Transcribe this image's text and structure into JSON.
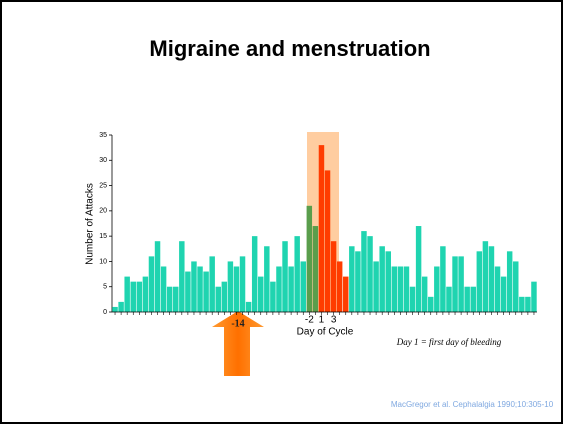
{
  "chart_data": {
    "type": "bar",
    "title": "Migraine and menstruation",
    "ylabel": "Number of Attacks",
    "xlabel": "Day of Cycle",
    "note": "Day 1 = first day of bleeding",
    "source": "MacGregor et al. Cephalalgia 1990;10:305-10",
    "arrow_label": "-14",
    "categories": [
      null,
      null,
      null,
      null,
      null,
      null,
      null,
      null,
      null,
      null,
      null,
      null,
      null,
      null,
      null,
      null,
      null,
      null,
      null,
      null,
      null,
      null,
      null,
      null,
      null,
      null,
      null,
      null,
      null,
      null,
      null,
      null,
      "-2",
      null,
      "1",
      null,
      "3",
      null,
      null,
      null,
      null,
      null,
      null,
      null,
      null,
      null,
      null,
      null,
      null,
      null,
      null,
      null,
      null,
      null,
      null,
      null,
      null,
      null,
      null,
      null,
      null,
      null,
      null,
      null,
      null,
      null,
      null,
      null,
      null,
      null
    ],
    "values": [
      1,
      2,
      7,
      6,
      6,
      7,
      11,
      14,
      9,
      5,
      5,
      14,
      8,
      10,
      9,
      8,
      11,
      5,
      6,
      10,
      9,
      11,
      2,
      15,
      7,
      13,
      6,
      9,
      14,
      9,
      15,
      10,
      21,
      17,
      33,
      28,
      14,
      10,
      7,
      13,
      12,
      16,
      15,
      10,
      13,
      12,
      9,
      9,
      9,
      5,
      17,
      7,
      3,
      9,
      13,
      5,
      11,
      11,
      5,
      5,
      12,
      14,
      13,
      9,
      7,
      12,
      10,
      3,
      3,
      6
    ],
    "colors": [
      "#1fd4b0",
      "#1fd4b0",
      "#1fd4b0",
      "#1fd4b0",
      "#1fd4b0",
      "#1fd4b0",
      "#1fd4b0",
      "#1fd4b0",
      "#1fd4b0",
      "#1fd4b0",
      "#1fd4b0",
      "#1fd4b0",
      "#1fd4b0",
      "#1fd4b0",
      "#1fd4b0",
      "#1fd4b0",
      "#1fd4b0",
      "#1fd4b0",
      "#1fd4b0",
      "#1fd4b0",
      "#1fd4b0",
      "#1fd4b0",
      "#1fd4b0",
      "#1fd4b0",
      "#1fd4b0",
      "#1fd4b0",
      "#1fd4b0",
      "#1fd4b0",
      "#1fd4b0",
      "#1fd4b0",
      "#1fd4b0",
      "#1fd4b0",
      "#5a9e4c",
      "#5a9e4c",
      "#ff3c00",
      "#ff3c00",
      "#ff3c00",
      "#ff3c00",
      "#ff3c00",
      "#1fd4b0",
      "#1fd4b0",
      "#1fd4b0",
      "#1fd4b0",
      "#1fd4b0",
      "#1fd4b0",
      "#1fd4b0",
      "#1fd4b0",
      "#1fd4b0",
      "#1fd4b0",
      "#1fd4b0",
      "#1fd4b0",
      "#1fd4b0",
      "#1fd4b0",
      "#1fd4b0",
      "#1fd4b0",
      "#1fd4b0",
      "#1fd4b0",
      "#1fd4b0",
      "#1fd4b0",
      "#1fd4b0",
      "#1fd4b0",
      "#1fd4b0",
      "#1fd4b0",
      "#1fd4b0",
      "#1fd4b0",
      "#1fd4b0",
      "#1fd4b0",
      "#1fd4b0",
      "#1fd4b0",
      "#1fd4b0"
    ],
    "ylim": [
      0,
      35
    ],
    "yticks": [
      0,
      5,
      10,
      15,
      20,
      25,
      30,
      35
    ]
  }
}
